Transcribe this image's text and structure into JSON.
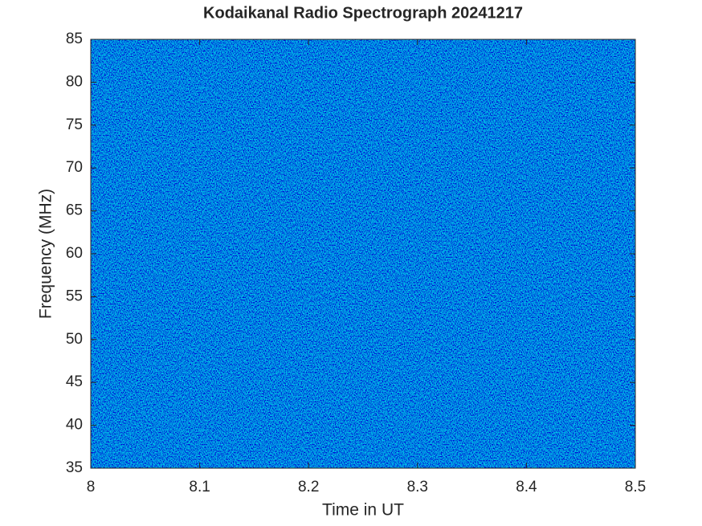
{
  "chart_data": {
    "type": "spectrogram",
    "title": "Kodaikanal Radio Spectrograph  20241217",
    "x_label": "Time in UT",
    "y_label": "Frequency (MHz)",
    "xlim": [
      8,
      8.5
    ],
    "xticks": [
      8,
      8.1,
      8.2,
      8.3,
      8.4,
      8.5
    ],
    "ylim": [
      35,
      85
    ],
    "yticks": [
      35,
      40,
      45,
      50,
      55,
      60,
      65,
      70,
      75,
      80,
      85
    ]
  }
}
